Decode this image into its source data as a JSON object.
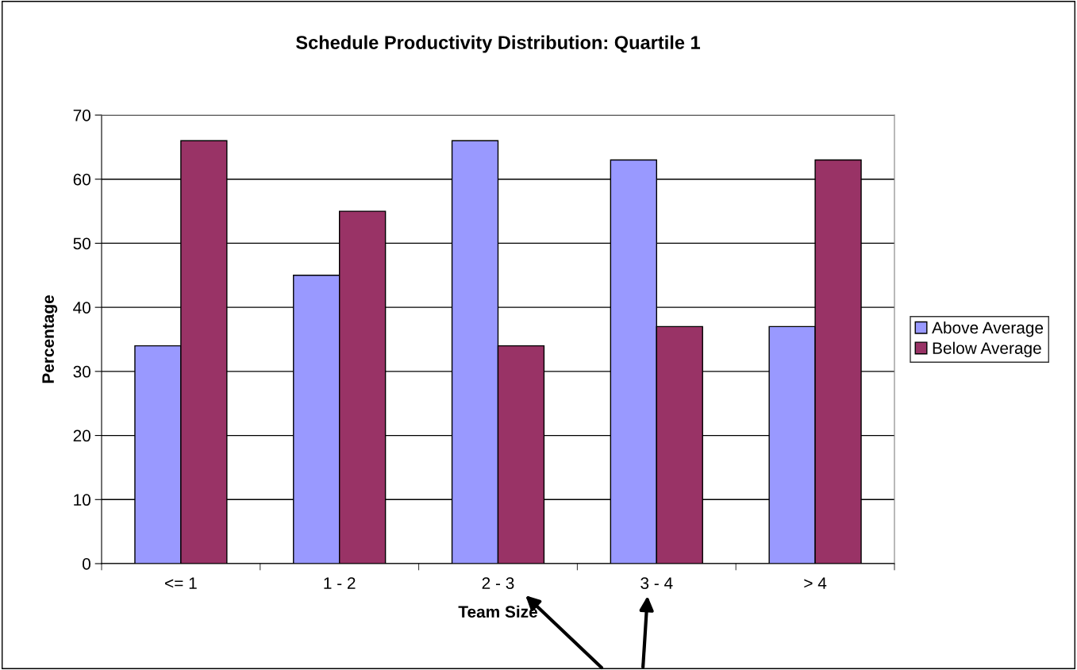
{
  "chart_data": {
    "type": "bar",
    "title": "Schedule Productivity Distribution: Quartile 1",
    "xlabel": "Team Size",
    "ylabel": "Percentage",
    "categories": [
      "<= 1",
      "1 - 2",
      "2 - 3",
      "3 - 4",
      "> 4"
    ],
    "series": [
      {
        "name": "Above Average",
        "color": "#9999ff",
        "values": [
          34,
          45,
          66,
          63,
          37
        ]
      },
      {
        "name": "Below Average",
        "color": "#993366",
        "values": [
          66,
          55,
          34,
          37,
          63
        ]
      }
    ],
    "ylim": [
      0,
      70
    ],
    "yticks": [
      0,
      10,
      20,
      30,
      40,
      50,
      60,
      70
    ],
    "grid": "y",
    "legend": "right"
  }
}
